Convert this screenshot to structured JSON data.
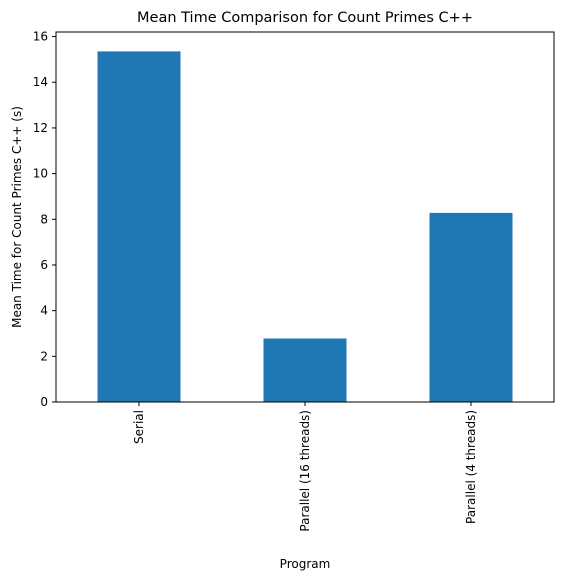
{
  "chart_data": {
    "type": "bar",
    "title": "Mean Time Comparison for Count Primes C++",
    "xlabel": "Program",
    "ylabel": "Mean Time for Count Primes C++ (s)",
    "categories": [
      "Serial",
      "Parallel (16 threads)",
      "Parallel (4 threads)"
    ],
    "values": [
      15.35,
      2.78,
      8.28
    ],
    "ylim": [
      0,
      16.2
    ],
    "yticks": [
      0,
      2,
      4,
      6,
      8,
      10,
      12,
      14,
      16
    ],
    "bar_color": "#1f77b4",
    "grid": false,
    "legend": "none"
  }
}
